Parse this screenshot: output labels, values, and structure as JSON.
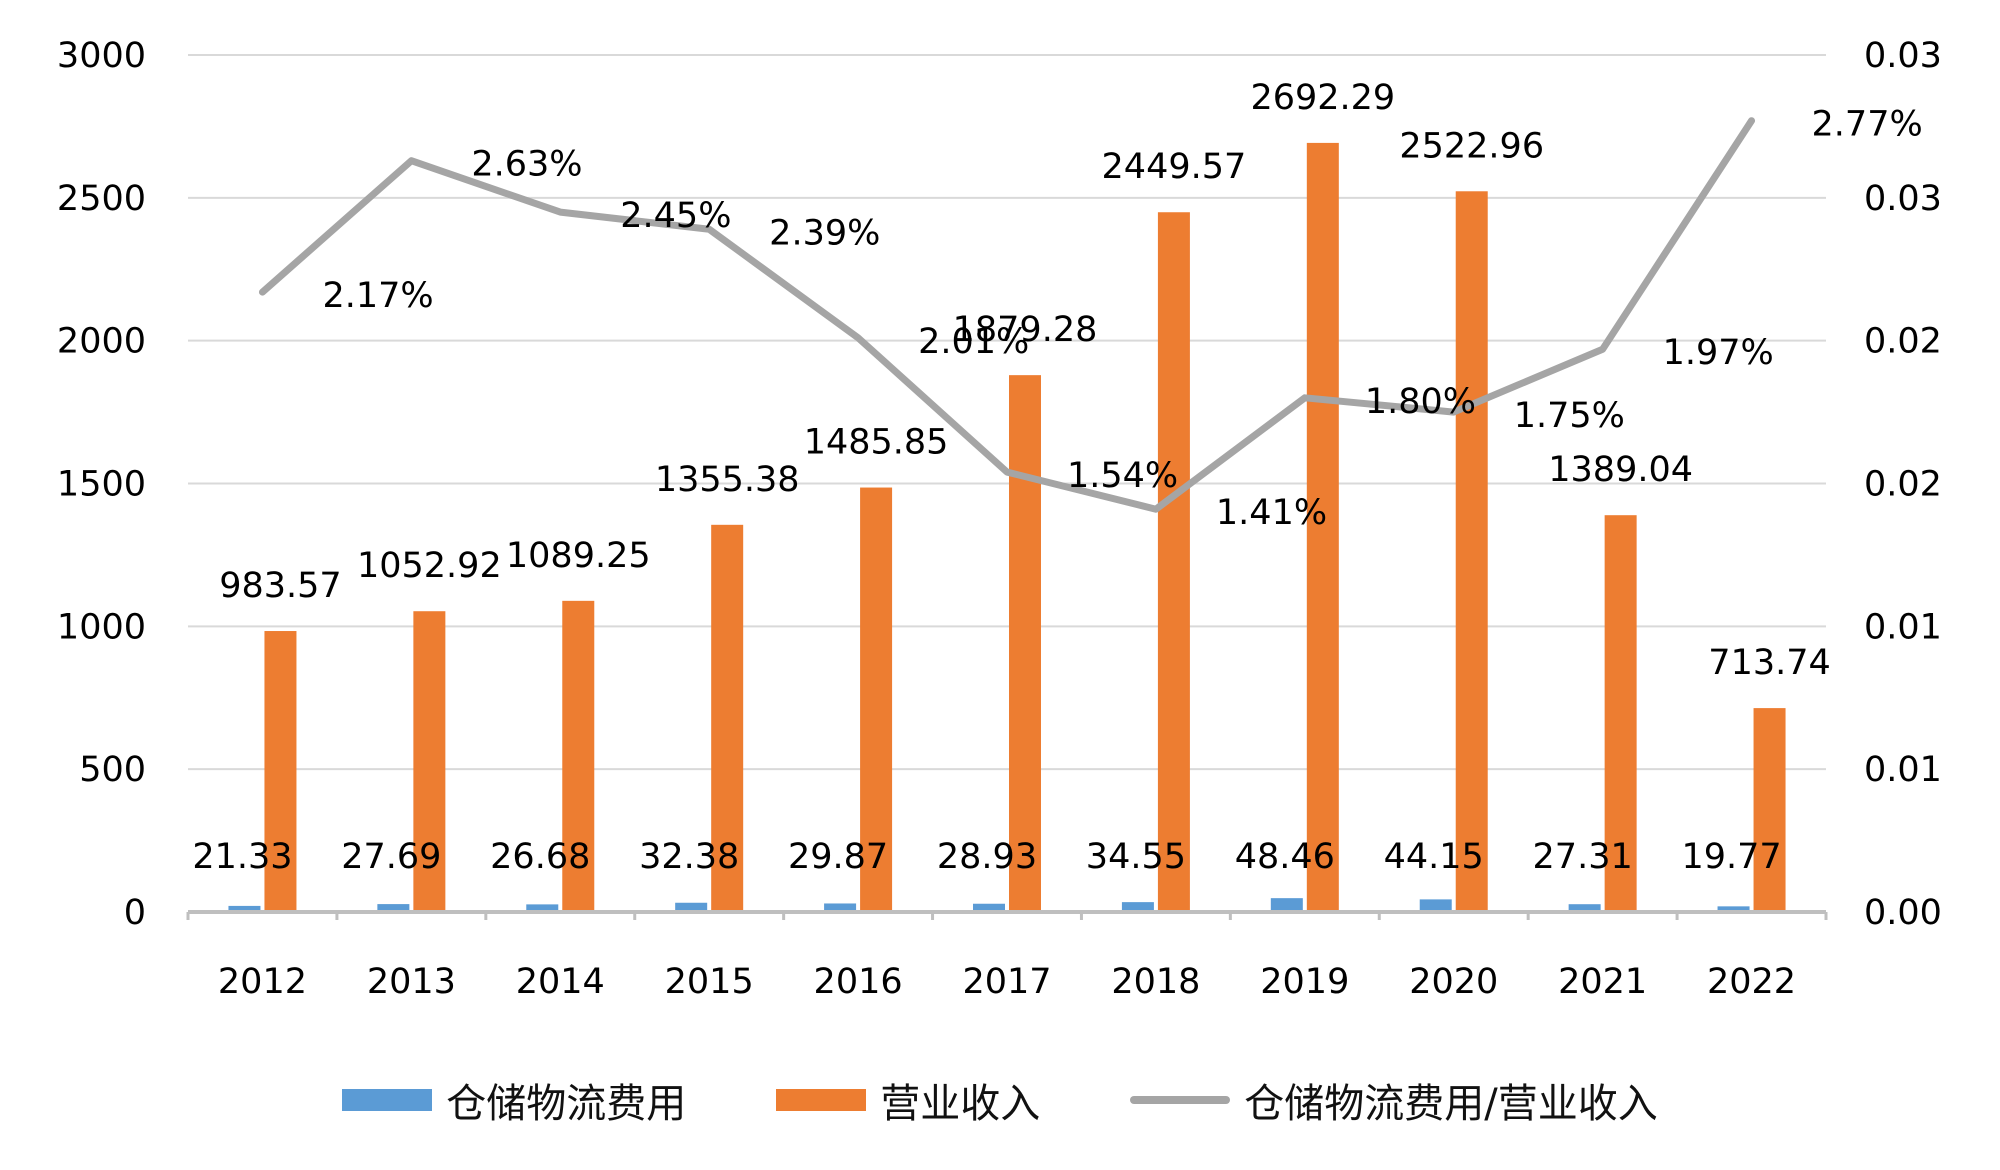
{
  "chart_data": {
    "type": "bar+line",
    "categories": [
      "2012",
      "2013",
      "2014",
      "2015",
      "2016",
      "2017",
      "2018",
      "2019",
      "2020",
      "2021",
      "2022"
    ],
    "series": [
      {
        "name": "仓储物流费用",
        "type": "bar",
        "axis": "left",
        "color": "#5B9BD5",
        "values": [
          21.33,
          27.69,
          26.68,
          32.38,
          29.87,
          28.93,
          34.55,
          48.46,
          44.15,
          27.31,
          19.77
        ],
        "labels": [
          "21.33",
          "27.69",
          "26.68",
          "32.38",
          "29.87",
          "28.93",
          "34.55",
          "48.46",
          "44.15",
          "27.31",
          "19.77"
        ]
      },
      {
        "name": "营业收入",
        "type": "bar",
        "axis": "left",
        "color": "#ED7D31",
        "values": [
          983.57,
          1052.92,
          1089.25,
          1355.38,
          1485.85,
          1879.28,
          2449.57,
          2692.29,
          2522.96,
          1389.04,
          713.74
        ],
        "labels": [
          "983.57",
          "1052.92",
          "1089.25",
          "1355.38",
          "1485.85",
          "1879.28",
          "2449.57",
          "2692.29",
          "2522.96",
          "1389.04",
          "713.74"
        ]
      },
      {
        "name": "仓储物流费用/营业收入",
        "type": "line",
        "axis": "right",
        "color": "#A5A5A5",
        "values": [
          0.0217,
          0.0263,
          0.0245,
          0.0239,
          0.0201,
          0.0154,
          0.0141,
          0.018,
          0.0175,
          0.0197,
          0.0277
        ],
        "labels": [
          "2.17%",
          "2.63%",
          "2.45%",
          "2.39%",
          "2.01%",
          "1.54%",
          "1.41%",
          "1.80%",
          "1.75%",
          "1.97%",
          "2.77%"
        ]
      }
    ],
    "y_left": {
      "ylim": [
        0,
        3000
      ],
      "ticks": [
        "0",
        "500",
        "1000",
        "1500",
        "2000",
        "2500",
        "3000"
      ]
    },
    "y_right": {
      "ylim": [
        0,
        0.03
      ],
      "ticks": [
        "0.00",
        "0.01",
        "0.01",
        "0.02",
        "0.02",
        "0.03",
        "0.03"
      ]
    },
    "grid": true,
    "legend": "bottom"
  }
}
